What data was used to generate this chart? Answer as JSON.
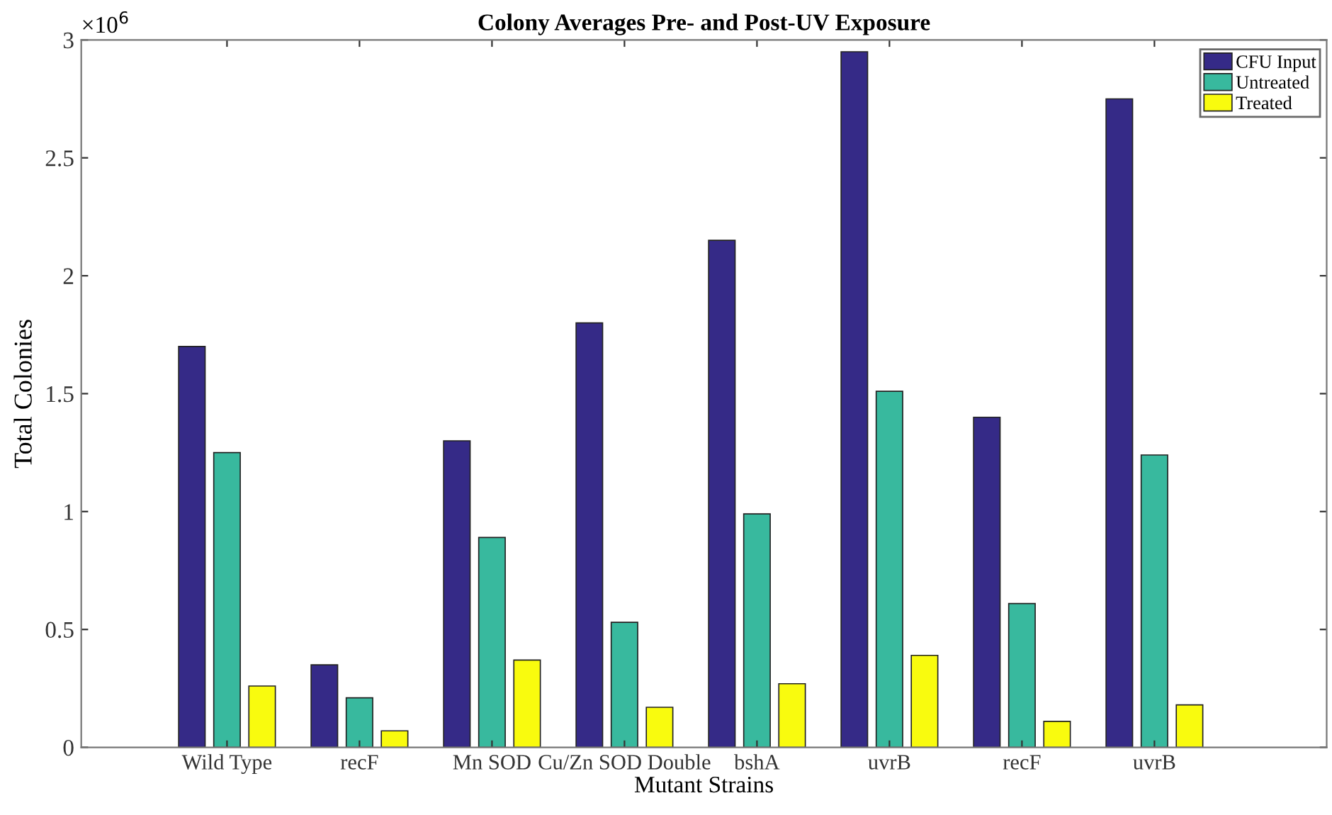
{
  "chart_data": {
    "type": "bar",
    "title": "Colony Averages Pre- and Post-UV Exposure",
    "xlabel": "Mutant Strains",
    "ylabel": "Total Colonies",
    "categories": [
      "Wild Type",
      "recF",
      "Mn SOD",
      "Cu/Zn SOD Double",
      "bshA",
      "uvrB",
      "recF",
      "uvrB"
    ],
    "series": [
      {
        "name": "CFU Input",
        "color": "#352a87",
        "values": [
          1.7,
          0.35,
          1.3,
          1.8,
          2.15,
          2.95,
          1.4,
          2.75
        ]
      },
      {
        "name": "Untreated",
        "color": "#38b99e",
        "values": [
          1.25,
          0.21,
          0.89,
          0.53,
          0.99,
          1.51,
          0.61,
          1.24
        ]
      },
      {
        "name": "Treated",
        "color": "#f9fb0e",
        "values": [
          0.26,
          0.07,
          0.37,
          0.17,
          0.27,
          0.39,
          0.11,
          0.18
        ]
      }
    ],
    "ylim": [
      0,
      3
    ],
    "yticks": [
      0,
      0.5,
      1,
      1.5,
      2,
      2.5,
      3
    ],
    "annotations": [
      "×10$^{6}$"
    ],
    "legend": "top right",
    "grid": false
  }
}
